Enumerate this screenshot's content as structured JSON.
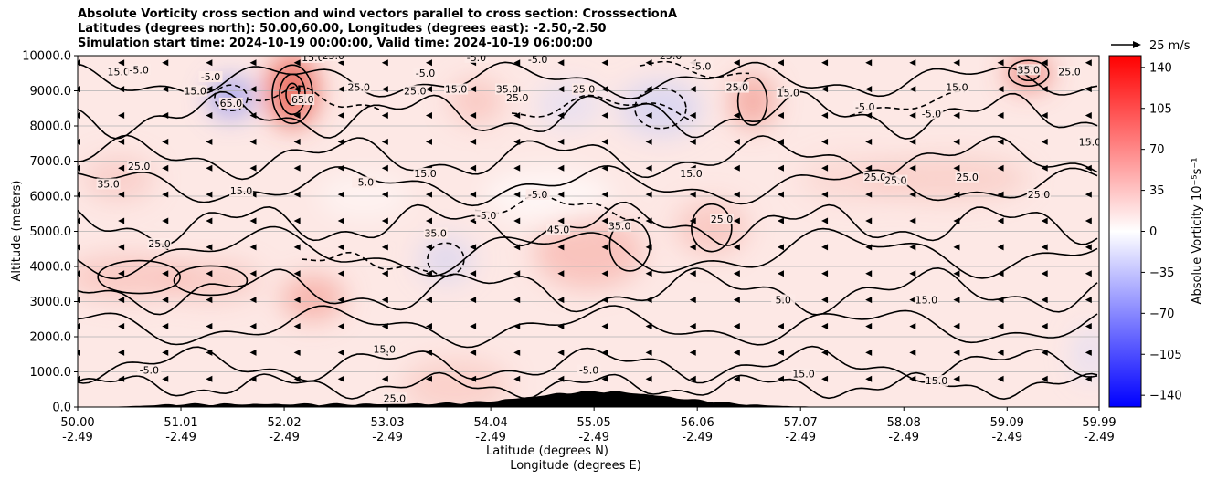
{
  "title_lines": [
    "Absolute Vorticity cross section and wind vectors parallel to cross section: CrosssectionA",
    "Latitudes (degrees north): 50.00,60.00, Longitudes (degrees east): -2.50,-2.50",
    "Simulation start time: 2024-10-19 00:00:00, Valid time: 2024-10-19 06:00:00"
  ],
  "chart_data": {
    "type": "heatmap",
    "description_values": "absolute vorticity cross section with contour lines and wind vectors",
    "ylabel": "Altitude (meters)",
    "xlabel_lat": "Latitude (degrees N)",
    "xlabel_lon": "Longitude (degrees E)",
    "ylim": [
      0,
      10000
    ],
    "yticks": [
      "0.0",
      "1000.0",
      "2000.0",
      "3000.0",
      "4000.0",
      "5000.0",
      "6000.0",
      "7000.0",
      "8000.0",
      "9000.0",
      "10000.0"
    ],
    "xticks_lat": [
      "50.00",
      "51.01",
      "52.02",
      "53.03",
      "54.04",
      "55.05",
      "56.06",
      "57.07",
      "58.08",
      "59.09",
      "59.99"
    ],
    "xticks_lon": [
      "-2.49",
      "-2.49",
      "-2.49",
      "-2.49",
      "-2.49",
      "-2.49",
      "-2.49",
      "-2.49",
      "-2.49",
      "-2.49",
      "-2.49"
    ],
    "grid": "horizontal",
    "colorbar": {
      "label": "Absolue Vorticity 10⁻⁵s⁻¹",
      "range": [
        -150,
        150
      ],
      "ticks": [
        "140",
        "105",
        "70",
        "35",
        "0",
        "−35",
        "−70",
        "−105",
        "−140"
      ],
      "colors": {
        "min": "#0000ff",
        "mid": "#ffffff",
        "max": "#ff0000"
      }
    },
    "quiver_key": "25 m/s",
    "contour_labels": [
      {
        "text": "15.0",
        "lat": 50.4,
        "alt": 9500
      },
      {
        "text": "-5.0",
        "lat": 50.6,
        "alt": 9550
      },
      {
        "text": "15.0",
        "lat": 51.15,
        "alt": 8950
      },
      {
        "text": "-5.0",
        "lat": 51.3,
        "alt": 9350
      },
      {
        "text": "65.0",
        "lat": 51.5,
        "alt": 8600
      },
      {
        "text": "65.0",
        "lat": 52.2,
        "alt": 8700
      },
      {
        "text": "15.0",
        "lat": 52.3,
        "alt": 9900
      },
      {
        "text": "25.0",
        "lat": 52.5,
        "alt": 9950
      },
      {
        "text": "25.0",
        "lat": 52.75,
        "alt": 9050
      },
      {
        "text": "-5.0",
        "lat": 53.4,
        "alt": 9450
      },
      {
        "text": "25.0",
        "lat": 53.3,
        "alt": 8950
      },
      {
        "text": "-5.0",
        "lat": 53.9,
        "alt": 9900
      },
      {
        "text": "15.0",
        "lat": 53.7,
        "alt": 9000
      },
      {
        "text": "35.0",
        "lat": 54.2,
        "alt": 9000
      },
      {
        "text": "25.0",
        "lat": 54.3,
        "alt": 8750
      },
      {
        "text": "-5.0",
        "lat": 54.5,
        "alt": 9850
      },
      {
        "text": "25.0",
        "lat": 54.95,
        "alt": 9000
      },
      {
        "text": "25.0",
        "lat": 55.8,
        "alt": 9950
      },
      {
        "text": "-5.0",
        "lat": 56.1,
        "alt": 9650
      },
      {
        "text": "25.0",
        "lat": 56.45,
        "alt": 9050
      },
      {
        "text": "15.0",
        "lat": 56.95,
        "alt": 8900
      },
      {
        "text": "-5.0",
        "lat": 57.7,
        "alt": 8500
      },
      {
        "text": "-5.0",
        "lat": 58.35,
        "alt": 8300
      },
      {
        "text": "15.0",
        "lat": 58.6,
        "alt": 9050
      },
      {
        "text": "35.0",
        "lat": 59.3,
        "alt": 9550
      },
      {
        "text": "25.0",
        "lat": 59.7,
        "alt": 9500
      },
      {
        "text": "15.0",
        "lat": 59.9,
        "alt": 7500
      },
      {
        "text": "25.0",
        "lat": 50.6,
        "alt": 6800
      },
      {
        "text": "35.0",
        "lat": 50.3,
        "alt": 6300
      },
      {
        "text": "15.0",
        "lat": 51.6,
        "alt": 6100
      },
      {
        "text": "-5.0",
        "lat": 52.8,
        "alt": 6350
      },
      {
        "text": "15.0",
        "lat": 53.4,
        "alt": 6600
      },
      {
        "text": "-5.0",
        "lat": 54.5,
        "alt": 6000
      },
      {
        "text": "-5.0",
        "lat": 54.0,
        "alt": 5400
      },
      {
        "text": "15.0",
        "lat": 56.0,
        "alt": 6600
      },
      {
        "text": "25.0",
        "lat": 57.8,
        "alt": 6500
      },
      {
        "text": "25.0",
        "lat": 58.0,
        "alt": 6400
      },
      {
        "text": "25.0",
        "lat": 58.7,
        "alt": 6500
      },
      {
        "text": "25.0",
        "lat": 59.4,
        "alt": 6000
      },
      {
        "text": "25.0",
        "lat": 50.8,
        "alt": 4600
      },
      {
        "text": "35.0",
        "lat": 53.5,
        "alt": 4900
      },
      {
        "text": "45.0",
        "lat": 54.7,
        "alt": 5000
      },
      {
        "text": "35.0",
        "lat": 55.3,
        "alt": 5100
      },
      {
        "text": "25.0",
        "lat": 56.3,
        "alt": 5300
      },
      {
        "text": "15.0",
        "lat": 53.0,
        "alt": 1600
      },
      {
        "text": "-5.0",
        "lat": 50.7,
        "alt": 1000
      },
      {
        "text": "15.0",
        "lat": 57.1,
        "alt": 900
      },
      {
        "text": "15.0",
        "lat": 58.4,
        "alt": 700
      },
      {
        "text": "5.0",
        "lat": 56.9,
        "alt": 3000
      },
      {
        "text": "15.0",
        "lat": 58.3,
        "alt": 3000
      },
      {
        "text": "-5.0",
        "lat": 55.0,
        "alt": 1000
      },
      {
        "text": "25.0",
        "lat": 53.1,
        "alt": 200
      }
    ]
  }
}
